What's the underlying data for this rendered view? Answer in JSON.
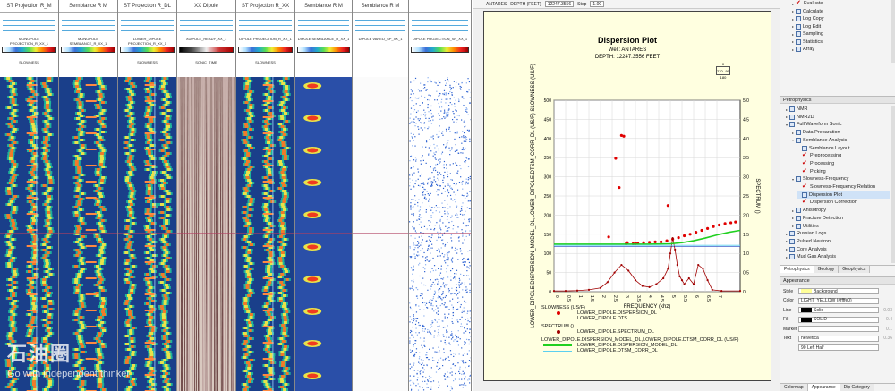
{
  "log_tracks": [
    {
      "title": "ST Projection R_M",
      "curve_label": "MONOPOLE PROJECTION_R_XX_1",
      "sub_label": "SLOWNESS",
      "kind": "projection"
    },
    {
      "title": "Semblance R M",
      "curve_label": "MONOPOLE SEMBLANCE_R_XX_1",
      "sub_label": "",
      "kind": "semblance_strip"
    },
    {
      "title": "ST Projection R_DL",
      "curve_label": "LOWER_DIPOLE PROJECTION_R_XX_1",
      "sub_label": "SLOWNESS",
      "kind": "projection"
    },
    {
      "title": "XX Dipole",
      "curve_label": "XDIPOLE_READY_XX_1",
      "sub_label": "SONIC_TIME",
      "kind": "waveform"
    },
    {
      "title": "ST Projection R_XX",
      "curve_label": "DIPOLE PROJECTION_R_XX_1",
      "sub_label": "SLOWNESS",
      "kind": "projection"
    },
    {
      "title": "Semblance R M",
      "curve_label": "DIPOLE SEMBLANCE_R_XX_1",
      "sub_label": "",
      "kind": "semblance_blobs"
    },
    {
      "title": "Semblance R M",
      "curve_label": "DIPOLE VARED_SP_XX_1",
      "sub_label": "",
      "kind": "blank"
    },
    {
      "title": "",
      "curve_label": "DIPOLE PROJECTION_SP_XX_1",
      "sub_label": "",
      "kind": "scatter"
    }
  ],
  "watermark": {
    "logo_text": "石油圈",
    "tagline": "Go with independent thinker"
  },
  "toolbar": {
    "well": "ANTARES",
    "depth_label": "DEPTH (FEET)",
    "depth_value": "12247.3556",
    "step_label": "Step",
    "step_value": "1.00"
  },
  "plot": {
    "title": "Dispersion Plot",
    "well_line": "Well: ANTARES",
    "depth_line": "DEPTH: 12247.3556 FEET",
    "compass": {
      "top": "0",
      "left": "270",
      "right": "90",
      "bottom": "180"
    }
  },
  "chart_data": {
    "type": "scatter",
    "xlabel": "FREQUENCY (khz)",
    "ylabel_left": "LOWER_DIPOLE.DISPERSION_MODEL_DL,LOWER_DIPOLE.DTSM_CORR_DL (US/F) SLOWNESS (US/F)",
    "ylabel_right": "SPECTRUM ()",
    "xlim": [
      0,
      8
    ],
    "ylim_left": [
      0,
      500
    ],
    "ylim_right": [
      0,
      5
    ],
    "x_ticks": [
      "0",
      "0.5",
      "1",
      "1.5",
      "2",
      "2.5",
      "3",
      "3.5",
      "4",
      "4.5",
      "5",
      "5.5",
      "6",
      "6.5",
      "7"
    ],
    "y_ticks_left": [
      "0",
      "50",
      "100",
      "150",
      "200",
      "250",
      "300",
      "350",
      "400",
      "450",
      "500"
    ],
    "y_ticks_right": [
      "0",
      "0.5",
      "1.0",
      "1.5",
      "2.0",
      "2.5",
      "3.0",
      "3.5",
      "4.0",
      "4.5",
      "5.0"
    ],
    "grid": true,
    "series": [
      {
        "name": "LOWER_DIPOLE.DISPERSION_DL",
        "style": "points",
        "color": "#e00000",
        "x": [
          2.35,
          2.65,
          2.8,
          2.9,
          3.0,
          3.15,
          3.4,
          3.6,
          3.85,
          4.1,
          4.35,
          4.6,
          4.85,
          5.1,
          5.35,
          5.6,
          5.85,
          6.1,
          6.35,
          6.6,
          6.85,
          7.1,
          7.35,
          7.6,
          7.8,
          3.1,
          3.5,
          4.9
        ],
        "y": [
          143,
          348,
          272,
          408,
          406,
          128,
          125,
          126,
          128,
          129,
          130,
          130,
          133,
          137,
          141,
          146,
          150,
          155,
          160,
          165,
          170,
          174,
          178,
          180,
          182,
          125,
          125,
          225
        ]
      },
      {
        "name": "LOWER_DIPOLE.DTS",
        "style": "line",
        "color": "#4060c8",
        "x": [
          0,
          8
        ],
        "y": [
          118,
          118
        ]
      },
      {
        "name": "LOWER_DIPOLE.SPECTRUM_DL",
        "style": "line-points",
        "color": "#a00000",
        "axis": "right",
        "x": [
          0,
          0.5,
          1,
          1.5,
          2,
          2.3,
          2.6,
          2.9,
          3.2,
          3.5,
          3.8,
          4.1,
          4.4,
          4.7,
          4.9,
          5.0,
          5.1,
          5.2,
          5.3,
          5.4,
          5.5,
          5.6,
          5.8,
          6.0,
          6.2,
          6.4,
          6.6,
          6.8,
          7.2,
          8
        ],
        "y": [
          0.02,
          0.02,
          0.03,
          0.05,
          0.1,
          0.25,
          0.5,
          0.7,
          0.55,
          0.3,
          0.15,
          0.12,
          0.2,
          0.35,
          0.6,
          1.0,
          1.4,
          1.1,
          0.7,
          0.4,
          0.3,
          0.2,
          0.35,
          0.2,
          0.7,
          0.6,
          0.3,
          0.05,
          0.02,
          0.02
        ]
      },
      {
        "name": "LOWER_DIPOLE.DISPERSION_MODEL_DL",
        "style": "line",
        "color": "#20d020",
        "x": [
          0,
          1,
          2,
          3,
          4,
          5,
          5.5,
          6,
          6.5,
          7,
          7.5,
          8
        ],
        "y": [
          124,
          124,
          124,
          124,
          124,
          125,
          128,
          133,
          140,
          148,
          155,
          160
        ]
      },
      {
        "name": "LOWER_DIPOLE.DTSM_CORR_DL",
        "style": "line",
        "color": "#5bd0f0",
        "x": [
          0,
          8
        ],
        "y": [
          121,
          121
        ]
      }
    ]
  },
  "legend": {
    "groups": [
      {
        "heading": "SLOWNESS (US/F)",
        "items": [
          {
            "label": "LOWER_DIPOLE.DISPERSION_DL",
            "color": "#e00000",
            "symbol": "dot"
          },
          {
            "label": "LOWER_DIPOLE.DTS",
            "color": "#4060c8",
            "symbol": "line"
          }
        ]
      },
      {
        "heading": "SPECTRUM ()",
        "items": [
          {
            "label": "LOWER_DIPOLE.SPECTRUM_DL",
            "color": "#a00000",
            "symbol": "dot"
          }
        ]
      },
      {
        "heading": "LOWER_DIPOLE.DISPERSION_MODEL_DL,LOWER_DIPOLE.DTSM_CORR_DL (US/F)",
        "items": [
          {
            "label": "LOWER_DIPOLE.DISPERSION_MODEL_DL",
            "color": "#20d020",
            "symbol": "thick"
          },
          {
            "label": "LOWER_DIPOLE.DTSM_CORR_DL",
            "color": "#5bd0f0",
            "symbol": "line"
          }
        ]
      }
    ]
  },
  "top_tree": [
    {
      "label": "Evaluate",
      "icon": "red-check",
      "expand": true
    },
    {
      "label": "Calculate",
      "icon": "doc",
      "expand": true
    },
    {
      "label": "Log Copy",
      "icon": "doc",
      "expand": true
    },
    {
      "label": "Log Edit",
      "icon": "doc",
      "expand": true
    },
    {
      "label": "Sampling",
      "icon": "doc",
      "expand": true
    },
    {
      "label": "Statistics",
      "icon": "doc",
      "expand": true
    },
    {
      "label": "Array",
      "icon": "doc",
      "expand": true
    }
  ],
  "petro_panel": {
    "title": "Petrophysics",
    "items": [
      {
        "label": "NMR",
        "level": 0,
        "expand": "▸",
        "icon": "doc"
      },
      {
        "label": "NMR2D",
        "level": 0,
        "expand": "▸",
        "icon": "doc"
      },
      {
        "label": "Full Waveform Sonic",
        "level": 0,
        "expand": "▾",
        "icon": "doc"
      },
      {
        "label": "Data Preparation",
        "level": 1,
        "expand": "▸",
        "icon": "doc"
      },
      {
        "label": "Semblance Analysis",
        "level": 1,
        "expand": "▾",
        "icon": "doc"
      },
      {
        "label": "Semblance Layout",
        "level": 2,
        "expand": "",
        "icon": "doc"
      },
      {
        "label": "Preprocessing",
        "level": 2,
        "expand": "",
        "icon": "red-check"
      },
      {
        "label": "Processing",
        "level": 2,
        "expand": "",
        "icon": "red-check"
      },
      {
        "label": "Picking",
        "level": 2,
        "expand": "",
        "icon": "red-check"
      },
      {
        "label": "Slowness-Frequency",
        "level": 1,
        "expand": "▾",
        "icon": "doc"
      },
      {
        "label": "Slowness-Frequency Relation",
        "level": 2,
        "expand": "",
        "icon": "red-check"
      },
      {
        "label": "Dispersion Plot",
        "level": 2,
        "expand": "",
        "icon": "doc",
        "selected": true
      },
      {
        "label": "Dispersion Correction",
        "level": 2,
        "expand": "",
        "icon": "red-check"
      },
      {
        "label": "Anisotropy",
        "level": 1,
        "expand": "▸",
        "icon": "doc"
      },
      {
        "label": "Fracture Detection",
        "level": 1,
        "expand": "▸",
        "icon": "doc"
      },
      {
        "label": "Utilities",
        "level": 1,
        "expand": "▸",
        "icon": "doc"
      },
      {
        "label": "Russian Logs",
        "level": 0,
        "expand": "▸",
        "icon": "doc"
      },
      {
        "label": "Pulsed Neutron",
        "level": 0,
        "expand": "▸",
        "icon": "doc"
      },
      {
        "label": "Core Analysis",
        "level": 0,
        "expand": "▸",
        "icon": "doc"
      },
      {
        "label": "Mud Gas Analysis",
        "level": 0,
        "expand": "▸",
        "icon": "doc"
      }
    ],
    "tabs": [
      "Petrophysics",
      "Geology",
      "Geophysics"
    ]
  },
  "appearance": {
    "title": "Appearance",
    "rows": [
      {
        "label": "Style",
        "value": "Background",
        "num": "",
        "swatch": "#ffff99"
      },
      {
        "label": "Color",
        "value": "LIGHT_YELLOW (#ffffe0)",
        "num": "",
        "swatch": ""
      },
      {
        "label": "Line",
        "value": "Solid",
        "num": "0.03",
        "swatch": "#000000"
      },
      {
        "label": "Fill",
        "value": "SOLID",
        "num": "0.4",
        "swatch": "#000000"
      },
      {
        "label": "Marker",
        "value": "",
        "num": "0.1",
        "swatch": ""
      },
      {
        "label": "Text",
        "value": "helvetica",
        "num": "0.36",
        "swatch": ""
      },
      {
        "label": "",
        "value": "90    Left    Half",
        "num": "",
        "swatch": ""
      }
    ],
    "tabs": [
      "Colormap",
      "Appearance",
      "Dip Category"
    ]
  }
}
